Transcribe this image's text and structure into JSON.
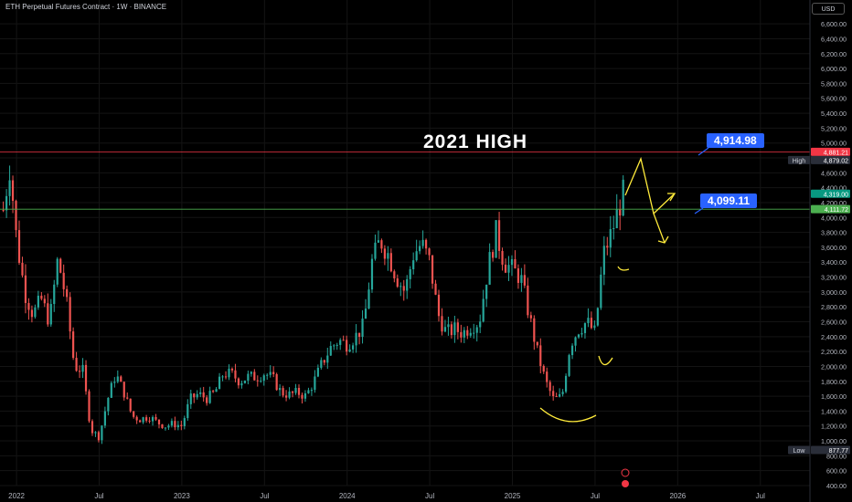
{
  "header": {
    "title": "ETH Perpetual Futures Contract · 1W · BINANCE",
    "currency": "USD"
  },
  "annotations": {
    "big_title": "2021 HIGH",
    "callout_high": "4,914.98",
    "callout_level": "4,099.11"
  },
  "price_axis": {
    "ticks": [
      "6,600.00",
      "6,400.00",
      "6,200.00",
      "6,000.00",
      "5,800.00",
      "5,600.00",
      "5,400.00",
      "5,200.00",
      "5,000.00",
      "4,800.00",
      "4,600.00",
      "4,400.00",
      "4,200.00",
      "4,000.00",
      "3,800.00",
      "3,600.00",
      "3,400.00",
      "3,200.00",
      "3,000.00",
      "2,800.00",
      "2,600.00",
      "2,400.00",
      "2,200.00",
      "2,000.00",
      "1,800.00",
      "1,600.00",
      "1,400.00",
      "1,200.00",
      "1,000.00",
      "800.00",
      "600.00",
      "400.00"
    ],
    "tick_values": [
      6600,
      6400,
      6200,
      6000,
      5800,
      5600,
      5400,
      5200,
      5000,
      4800,
      4600,
      4400,
      4200,
      4000,
      3800,
      3600,
      3400,
      3200,
      3000,
      2800,
      2600,
      2400,
      2200,
      2000,
      1800,
      1600,
      1400,
      1200,
      1000,
      800,
      600,
      400
    ],
    "badges": [
      {
        "label": "",
        "text": "4,881.21",
        "value": 4881.21,
        "color": "#f23645"
      },
      {
        "label": "High",
        "text": "4,879.02",
        "value": 4879.02,
        "color": "#2a2e39"
      },
      {
        "label": "",
        "text": "4,319.00",
        "value": 4319.0,
        "color": "#089981"
      },
      {
        "label": "",
        "text": "4,111.72",
        "value": 4111.72,
        "color": "#4caf50"
      },
      {
        "label": "Low",
        "text": "877.77",
        "value": 877.77,
        "color": "#2a2e39"
      }
    ]
  },
  "time_axis": {
    "labels": [
      "2022",
      "Jul",
      "2023",
      "Jul",
      "2024",
      "Jul",
      "2025",
      "Jul",
      "2026",
      "Jul"
    ],
    "t_values": [
      2022.0,
      2022.5,
      2023.0,
      2023.5,
      2024.0,
      2024.5,
      2025.0,
      2025.5,
      2026.0,
      2026.5
    ]
  },
  "chart_data": {
    "type": "candlestick",
    "symbol": "ETH Perpetual Futures Contract",
    "interval": "1W",
    "exchange": "BINANCE",
    "y_unit": "USD",
    "ylim": [
      400,
      6700
    ],
    "xlim": [
      2021.9,
      2026.8
    ],
    "horizontal_lines": [
      {
        "value": 4881.21,
        "color": "#f23645"
      },
      {
        "value": 4111.72,
        "color": "#4caf50"
      }
    ],
    "colors": {
      "up": "#26a69a",
      "down": "#ef5350",
      "drawing": "#ffeb3b",
      "callout": "#2962ff"
    },
    "anchors": [
      [
        2021.92,
        4100
      ],
      [
        2021.96,
        4700
      ],
      [
        2022.0,
        3700
      ],
      [
        2022.05,
        3000
      ],
      [
        2022.1,
        2700
      ],
      [
        2022.15,
        2900
      ],
      [
        2022.2,
        2600
      ],
      [
        2022.25,
        3450
      ],
      [
        2022.3,
        2900
      ],
      [
        2022.35,
        2000
      ],
      [
        2022.4,
        1950
      ],
      [
        2022.45,
        1150
      ],
      [
        2022.5,
        1050
      ],
      [
        2022.55,
        1550
      ],
      [
        2022.6,
        1900
      ],
      [
        2022.65,
        1650
      ],
      [
        2022.7,
        1330
      ],
      [
        2022.75,
        1290
      ],
      [
        2022.8,
        1330
      ],
      [
        2022.85,
        1250
      ],
      [
        2022.9,
        1200
      ],
      [
        2022.95,
        1230
      ],
      [
        2023.0,
        1200
      ],
      [
        2023.05,
        1560
      ],
      [
        2023.1,
        1630
      ],
      [
        2023.15,
        1570
      ],
      [
        2023.2,
        1650
      ],
      [
        2023.25,
        1900
      ],
      [
        2023.3,
        1900
      ],
      [
        2023.35,
        1800
      ],
      [
        2023.4,
        1860
      ],
      [
        2023.45,
        1860
      ],
      [
        2023.5,
        1910
      ],
      [
        2023.55,
        1840
      ],
      [
        2023.6,
        1650
      ],
      [
        2023.65,
        1620
      ],
      [
        2023.7,
        1650
      ],
      [
        2023.75,
        1600
      ],
      [
        2023.8,
        1800
      ],
      [
        2023.85,
        2050
      ],
      [
        2023.9,
        2250
      ],
      [
        2023.95,
        2350
      ],
      [
        2024.0,
        2300
      ],
      [
        2024.05,
        2400
      ],
      [
        2024.1,
        2550
      ],
      [
        2024.15,
        3400
      ],
      [
        2024.2,
        3700
      ],
      [
        2024.25,
        3500
      ],
      [
        2024.3,
        3200
      ],
      [
        2024.35,
        3000
      ],
      [
        2024.4,
        3500
      ],
      [
        2024.45,
        3650
      ],
      [
        2024.5,
        3400
      ],
      [
        2024.55,
        2700
      ],
      [
        2024.6,
        2450
      ],
      [
        2024.65,
        2500
      ],
      [
        2024.7,
        2450
      ],
      [
        2024.75,
        2550
      ],
      [
        2024.8,
        2600
      ],
      [
        2024.85,
        3300
      ],
      [
        2024.9,
        3800
      ],
      [
        2024.95,
        3400
      ],
      [
        2025.0,
        3300
      ],
      [
        2025.05,
        3200
      ],
      [
        2025.1,
        2700
      ],
      [
        2025.15,
        2200
      ],
      [
        2025.2,
        1800
      ],
      [
        2025.25,
        1550
      ],
      [
        2025.3,
        1600
      ],
      [
        2025.35,
        2300
      ],
      [
        2025.4,
        2500
      ],
      [
        2025.45,
        2600
      ],
      [
        2025.5,
        2450
      ],
      [
        2025.55,
        3500
      ],
      [
        2025.6,
        3800
      ],
      [
        2025.64,
        4100
      ],
      [
        2025.67,
        4319
      ]
    ]
  }
}
